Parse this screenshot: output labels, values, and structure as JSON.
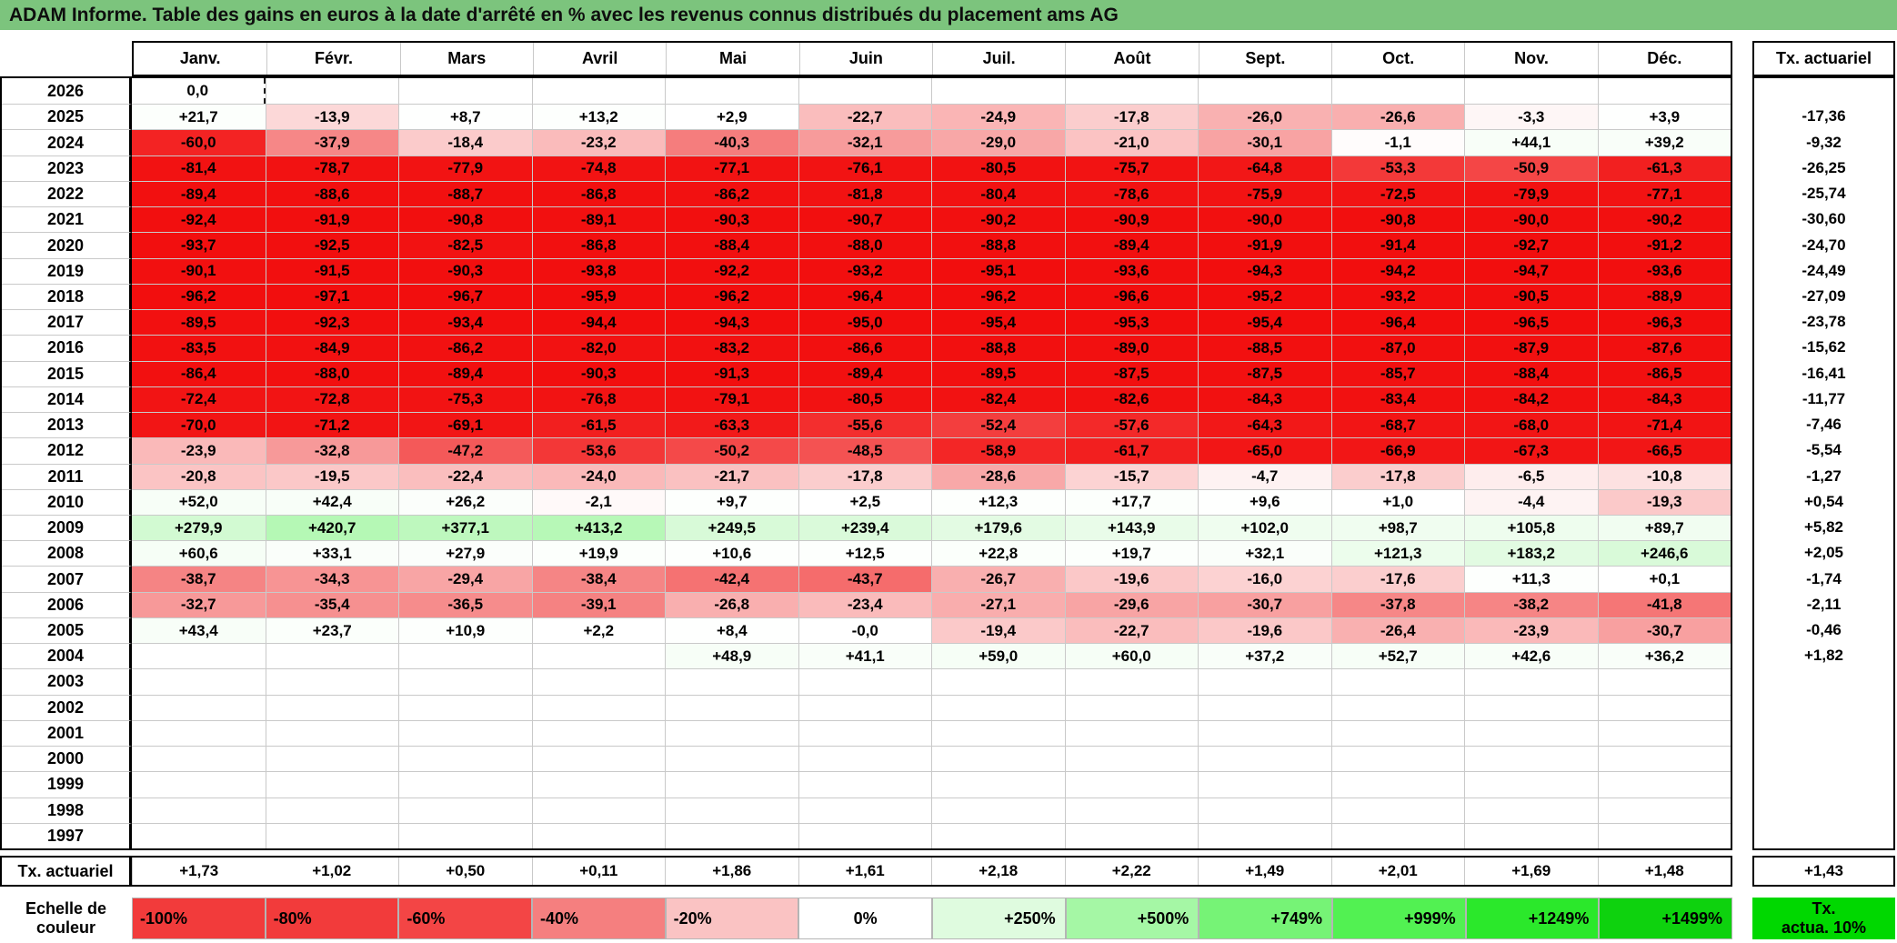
{
  "title": "ADAM Informe. Table des gains en euros à la date d'arrêté en % avec les revenus connus distribués du placement ams AG",
  "columns": [
    "Janv.",
    "Févr.",
    "Mars",
    "Avril",
    "Mai",
    "Juin",
    "Juil.",
    "Août",
    "Sept.",
    "Oct.",
    "Nov.",
    "Déc."
  ],
  "right_column_header": "Tx. actuariel",
  "rows": [
    {
      "year": "2026",
      "values": [
        "0,0",
        "",
        "",
        "",
        "",
        "",
        "",
        "",
        "",
        "",
        "",
        ""
      ],
      "tx": ""
    },
    {
      "year": "2025",
      "values": [
        "+21,7",
        "-13,9",
        "+8,7",
        "+13,2",
        "+2,9",
        "-22,7",
        "-24,9",
        "-17,8",
        "-26,0",
        "-26,6",
        "-3,3",
        "+3,9"
      ],
      "tx": "-17,36"
    },
    {
      "year": "2024",
      "values": [
        "-60,0",
        "-37,9",
        "-18,4",
        "-23,2",
        "-40,3",
        "-32,1",
        "-29,0",
        "-21,0",
        "-30,1",
        "-1,1",
        "+44,1",
        "+39,2"
      ],
      "tx": "-9,32"
    },
    {
      "year": "2023",
      "values": [
        "-81,4",
        "-78,7",
        "-77,9",
        "-74,8",
        "-77,1",
        "-76,1",
        "-80,5",
        "-75,7",
        "-64,8",
        "-53,3",
        "-50,9",
        "-61,3"
      ],
      "tx": "-26,25"
    },
    {
      "year": "2022",
      "values": [
        "-89,4",
        "-88,6",
        "-88,7",
        "-86,8",
        "-86,2",
        "-81,8",
        "-80,4",
        "-78,6",
        "-75,9",
        "-72,5",
        "-79,9",
        "-77,1"
      ],
      "tx": "-25,74"
    },
    {
      "year": "2021",
      "values": [
        "-92,4",
        "-91,9",
        "-90,8",
        "-89,1",
        "-90,3",
        "-90,7",
        "-90,2",
        "-90,9",
        "-90,0",
        "-90,8",
        "-90,0",
        "-90,2"
      ],
      "tx": "-30,60"
    },
    {
      "year": "2020",
      "values": [
        "-93,7",
        "-92,5",
        "-82,5",
        "-86,8",
        "-88,4",
        "-88,0",
        "-88,8",
        "-89,4",
        "-91,9",
        "-91,4",
        "-92,7",
        "-91,2"
      ],
      "tx": "-24,70"
    },
    {
      "year": "2019",
      "values": [
        "-90,1",
        "-91,5",
        "-90,3",
        "-93,8",
        "-92,2",
        "-93,2",
        "-95,1",
        "-93,6",
        "-94,3",
        "-94,2",
        "-94,7",
        "-93,6"
      ],
      "tx": "-24,49"
    },
    {
      "year": "2018",
      "values": [
        "-96,2",
        "-97,1",
        "-96,7",
        "-95,9",
        "-96,2",
        "-96,4",
        "-96,2",
        "-96,6",
        "-95,2",
        "-93,2",
        "-90,5",
        "-88,9"
      ],
      "tx": "-27,09"
    },
    {
      "year": "2017",
      "values": [
        "-89,5",
        "-92,3",
        "-93,4",
        "-94,4",
        "-94,3",
        "-95,0",
        "-95,4",
        "-95,3",
        "-95,4",
        "-96,4",
        "-96,5",
        "-96,3"
      ],
      "tx": "-23,78"
    },
    {
      "year": "2016",
      "values": [
        "-83,5",
        "-84,9",
        "-86,2",
        "-82,0",
        "-83,2",
        "-86,6",
        "-88,8",
        "-89,0",
        "-88,5",
        "-87,0",
        "-87,9",
        "-87,6"
      ],
      "tx": "-15,62"
    },
    {
      "year": "2015",
      "values": [
        "-86,4",
        "-88,0",
        "-89,4",
        "-90,3",
        "-91,3",
        "-89,4",
        "-89,5",
        "-87,5",
        "-87,5",
        "-85,7",
        "-88,4",
        "-86,5"
      ],
      "tx": "-16,41"
    },
    {
      "year": "2014",
      "values": [
        "-72,4",
        "-72,8",
        "-75,3",
        "-76,8",
        "-79,1",
        "-80,5",
        "-82,4",
        "-82,6",
        "-84,3",
        "-83,4",
        "-84,2",
        "-84,3"
      ],
      "tx": "-11,77"
    },
    {
      "year": "2013",
      "values": [
        "-70,0",
        "-71,2",
        "-69,1",
        "-61,5",
        "-63,3",
        "-55,6",
        "-52,4",
        "-57,6",
        "-64,3",
        "-68,7",
        "-68,0",
        "-71,4"
      ],
      "tx": "-7,46"
    },
    {
      "year": "2012",
      "values": [
        "-23,9",
        "-32,8",
        "-47,2",
        "-53,6",
        "-50,2",
        "-48,5",
        "-58,9",
        "-61,7",
        "-65,0",
        "-66,9",
        "-67,3",
        "-66,5"
      ],
      "tx": "-5,54"
    },
    {
      "year": "2011",
      "values": [
        "-20,8",
        "-19,5",
        "-22,4",
        "-24,0",
        "-21,7",
        "-17,8",
        "-28,6",
        "-15,7",
        "-4,7",
        "-17,8",
        "-6,5",
        "-10,8"
      ],
      "tx": "-1,27"
    },
    {
      "year": "2010",
      "values": [
        "+52,0",
        "+42,4",
        "+26,2",
        "-2,1",
        "+9,7",
        "+2,5",
        "+12,3",
        "+17,7",
        "+9,6",
        "+1,0",
        "-4,4",
        "-19,3"
      ],
      "tx": "+0,54"
    },
    {
      "year": "2009",
      "values": [
        "+279,9",
        "+420,7",
        "+377,1",
        "+413,2",
        "+249,5",
        "+239,4",
        "+179,6",
        "+143,9",
        "+102,0",
        "+98,7",
        "+105,8",
        "+89,7"
      ],
      "tx": "+5,82"
    },
    {
      "year": "2008",
      "values": [
        "+60,6",
        "+33,1",
        "+27,9",
        "+19,9",
        "+10,6",
        "+12,5",
        "+22,8",
        "+19,7",
        "+32,1",
        "+121,3",
        "+183,2",
        "+246,6"
      ],
      "tx": "+2,05"
    },
    {
      "year": "2007",
      "values": [
        "-38,7",
        "-34,3",
        "-29,4",
        "-38,4",
        "-42,4",
        "-43,7",
        "-26,7",
        "-19,6",
        "-16,0",
        "-17,6",
        "+11,3",
        "+0,1"
      ],
      "tx": "-1,74"
    },
    {
      "year": "2006",
      "values": [
        "-32,7",
        "-35,4",
        "-36,5",
        "-39,1",
        "-26,8",
        "-23,4",
        "-27,1",
        "-29,6",
        "-30,7",
        "-37,8",
        "-38,2",
        "-41,8"
      ],
      "tx": "-2,11"
    },
    {
      "year": "2005",
      "values": [
        "+43,4",
        "+23,7",
        "+10,9",
        "+2,2",
        "+8,4",
        "-0,0",
        "-19,4",
        "-22,7",
        "-19,6",
        "-26,4",
        "-23,9",
        "-30,7"
      ],
      "tx": "-0,46"
    },
    {
      "year": "2004",
      "values": [
        "",
        "",
        "",
        "",
        "+48,9",
        "+41,1",
        "+59,0",
        "+60,0",
        "+37,2",
        "+52,7",
        "+42,6",
        "+36,2"
      ],
      "tx": "+1,82"
    },
    {
      "year": "2003",
      "values": [
        "",
        "",
        "",
        "",
        "",
        "",
        "",
        "",
        "",
        "",
        "",
        ""
      ],
      "tx": ""
    },
    {
      "year": "2002",
      "values": [
        "",
        "",
        "",
        "",
        "",
        "",
        "",
        "",
        "",
        "",
        "",
        ""
      ],
      "tx": ""
    },
    {
      "year": "2001",
      "values": [
        "",
        "",
        "",
        "",
        "",
        "",
        "",
        "",
        "",
        "",
        "",
        ""
      ],
      "tx": ""
    },
    {
      "year": "2000",
      "values": [
        "",
        "",
        "",
        "",
        "",
        "",
        "",
        "",
        "",
        "",
        "",
        ""
      ],
      "tx": ""
    },
    {
      "year": "1999",
      "values": [
        "",
        "",
        "",
        "",
        "",
        "",
        "",
        "",
        "",
        "",
        "",
        ""
      ],
      "tx": ""
    },
    {
      "year": "1998",
      "values": [
        "",
        "",
        "",
        "",
        "",
        "",
        "",
        "",
        "",
        "",
        "",
        ""
      ],
      "tx": ""
    },
    {
      "year": "1997",
      "values": [
        "",
        "",
        "",
        "",
        "",
        "",
        "",
        "",
        "",
        "",
        "",
        ""
      ],
      "tx": ""
    }
  ],
  "footer": {
    "label": "Tx. actuariel",
    "values": [
      "+1,73",
      "+1,02",
      "+0,50",
      "+0,11",
      "+1,86",
      "+1,61",
      "+2,18",
      "+2,22",
      "+1,49",
      "+2,01",
      "+1,69",
      "+1,48"
    ],
    "tx": "+1,43"
  },
  "scale": {
    "label_line1": "Echelle de",
    "label_line2": "couleur",
    "cells": [
      {
        "label": "-100%",
        "color": "#f23b3b",
        "align": "left"
      },
      {
        "label": "-80%",
        "color": "#f23b3b",
        "align": "left"
      },
      {
        "label": "-60%",
        "color": "#f34545",
        "align": "left"
      },
      {
        "label": "-40%",
        "color": "#f57f7f",
        "align": "left"
      },
      {
        "label": "-20%",
        "color": "#fac3c3",
        "align": "left"
      },
      {
        "label": "0%",
        "color": "#ffffff",
        "align": "center"
      },
      {
        "label": "+250%",
        "color": "#dffbdf",
        "align": "right"
      },
      {
        "label": "+500%",
        "color": "#a5f7a5",
        "align": "right"
      },
      {
        "label": "+749%",
        "color": "#76f376",
        "align": "right"
      },
      {
        "label": "+999%",
        "color": "#52f152",
        "align": "right"
      },
      {
        "label": "+1249%",
        "color": "#2be82b",
        "align": "right"
      },
      {
        "label": "+1499%",
        "color": "#0ed20e",
        "align": "right"
      }
    ],
    "right_box_line1": "Tx.",
    "right_box_line2": "actua. 10%",
    "right_box_color": "#00d800"
  },
  "color_ramp": {
    "negative": [
      [
        0,
        "#ffffff"
      ],
      [
        -20,
        "#fbc7c7"
      ],
      [
        -40,
        "#f57f7f"
      ],
      [
        -55,
        "#f33030"
      ],
      [
        -65,
        "#f21616"
      ],
      [
        -100,
        "#f20d0d"
      ]
    ],
    "positive": [
      [
        0,
        "#ffffff"
      ],
      [
        250,
        "#d8fad8"
      ],
      [
        500,
        "#a5f7a5"
      ],
      [
        750,
        "#76f376"
      ],
      [
        1000,
        "#52f152"
      ],
      [
        1250,
        "#2be82b"
      ],
      [
        1500,
        "#0ed20e"
      ]
    ]
  },
  "colors": {
    "title_bg": "#7cc47d",
    "gridline": "#c9c9c9",
    "border": "#000000"
  }
}
